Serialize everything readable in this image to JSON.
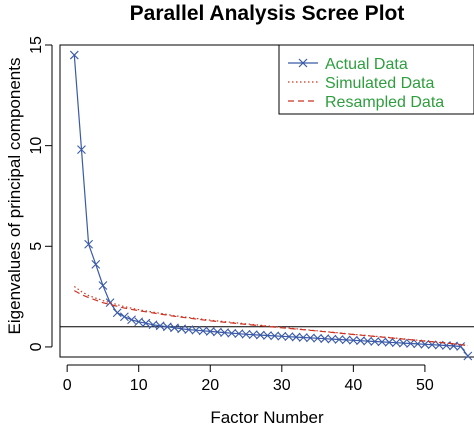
{
  "chart_data": {
    "type": "line",
    "title": "Parallel Analysis Scree Plot",
    "xlabel": "Factor Number",
    "ylabel": "Eigenvalues of principal components",
    "xlim": [
      -1,
      57
    ],
    "ylim": [
      -0.5,
      15
    ],
    "x_ticks": [
      "0",
      "10",
      "20",
      "30",
      "40",
      "50"
    ],
    "y_ticks": [
      "0",
      "5",
      "10",
      "15"
    ],
    "reference_line_y": 1,
    "legend_position": "top-right",
    "colors": {
      "actual": "#3a5aa8",
      "simulated": "#cc3322",
      "resampled": "#cc3322",
      "legend_text": "#2e9e3e"
    },
    "series": [
      {
        "name": "Actual Data",
        "style": "solid line with x markers",
        "x": [
          1,
          2,
          3,
          4,
          5,
          6,
          7,
          8,
          9,
          10,
          11,
          12,
          13,
          14,
          15,
          16,
          17,
          18,
          19,
          20,
          21,
          22,
          23,
          24,
          25,
          26,
          27,
          28,
          29,
          30,
          31,
          32,
          33,
          34,
          35,
          36,
          37,
          38,
          39,
          40,
          41,
          42,
          43,
          44,
          45,
          46,
          47,
          48,
          49,
          50,
          51,
          52,
          53,
          54,
          55,
          56
        ],
        "values": [
          14.5,
          9.8,
          5.1,
          4.1,
          3.05,
          2.2,
          1.7,
          1.5,
          1.35,
          1.25,
          1.18,
          1.1,
          1.05,
          1.0,
          0.95,
          0.9,
          0.86,
          0.83,
          0.8,
          0.77,
          0.74,
          0.71,
          0.68,
          0.66,
          0.63,
          0.61,
          0.59,
          0.57,
          0.55,
          0.53,
          0.51,
          0.49,
          0.47,
          0.45,
          0.43,
          0.41,
          0.39,
          0.37,
          0.35,
          0.33,
          0.31,
          0.29,
          0.27,
          0.25,
          0.23,
          0.21,
          0.19,
          0.17,
          0.15,
          0.13,
          0.11,
          0.09,
          0.07,
          0.05,
          0.02,
          -0.45
        ]
      },
      {
        "name": "Simulated Data",
        "style": "dotted",
        "x": [
          1,
          2,
          3,
          5,
          8,
          10,
          15,
          20,
          25,
          30,
          35,
          40,
          45,
          50,
          53,
          55,
          56
        ],
        "values": [
          3.0,
          2.75,
          2.55,
          2.3,
          2.0,
          1.85,
          1.55,
          1.33,
          1.15,
          0.97,
          0.8,
          0.63,
          0.47,
          0.3,
          0.2,
          0.12,
          0.07
        ]
      },
      {
        "name": "Resampled Data",
        "style": "dashed",
        "x": [
          1,
          2,
          3,
          5,
          8,
          10,
          15,
          20,
          25,
          30,
          35,
          40,
          45,
          50,
          53,
          55,
          56
        ],
        "values": [
          2.8,
          2.6,
          2.45,
          2.2,
          1.93,
          1.8,
          1.52,
          1.3,
          1.12,
          0.95,
          0.79,
          0.62,
          0.46,
          0.29,
          0.19,
          0.11,
          0.06
        ]
      }
    ]
  }
}
